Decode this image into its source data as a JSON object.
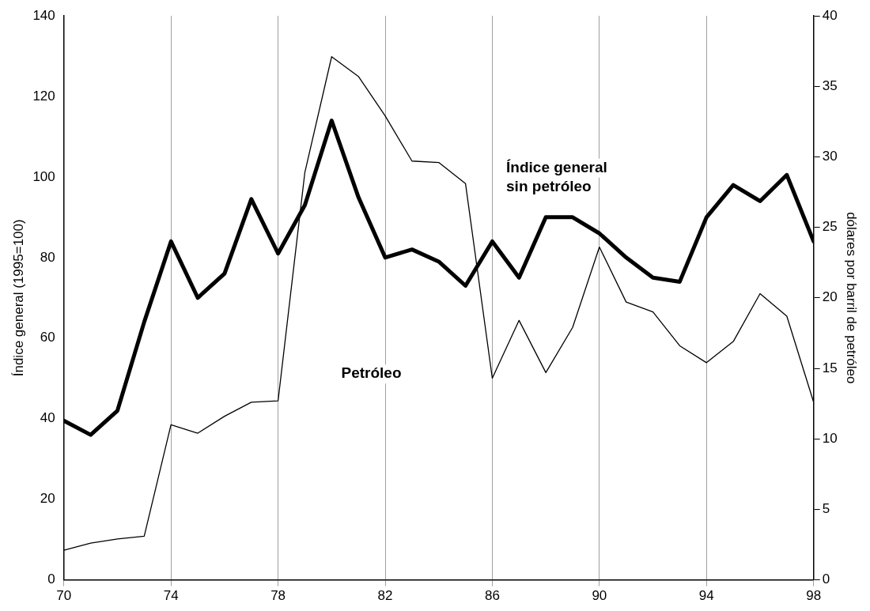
{
  "chart_data": {
    "type": "line",
    "ylabel": "Índice general (1995=100)",
    "y2label": "dólares por barril de petróleo",
    "x": [
      70,
      71,
      72,
      73,
      74,
      75,
      76,
      77,
      78,
      79,
      80,
      81,
      82,
      83,
      84,
      85,
      86,
      87,
      88,
      89,
      90,
      91,
      92,
      93,
      94,
      95,
      96,
      97,
      98
    ],
    "series": [
      {
        "color": "#000000",
        "values": [
          39.5,
          36,
          42,
          64,
          84,
          70,
          76,
          94.5,
          81,
          93,
          114,
          95,
          80,
          82,
          79,
          73,
          84,
          75,
          90,
          90,
          86,
          80,
          75,
          74,
          90,
          98,
          94,
          100.5,
          84
        ]
      },
      {
        "color": "#000000",
        "axis": "y2",
        "values": [
          2.1,
          2.6,
          2.9,
          3.1,
          11,
          10.4,
          11.6,
          12.6,
          12.7,
          28.9,
          37.1,
          35.7,
          32.9,
          29.7,
          29.6,
          28.1,
          14.3,
          18.4,
          14.7,
          17.9,
          23.6,
          19.7,
          19,
          16.6,
          15.4,
          16.9,
          20.3,
          18.7,
          12.6
        ]
      }
    ],
    "xlim": [
      70,
      98
    ],
    "xticks": [
      70,
      74,
      78,
      82,
      86,
      90,
      94,
      98
    ],
    "ylim": [
      0,
      140
    ],
    "yticks": [
      0,
      20,
      40,
      60,
      80,
      100,
      120,
      140
    ],
    "y2lim": [
      0,
      40
    ],
    "y2ticks": [
      0,
      5,
      10,
      15,
      20,
      25,
      30,
      35,
      40
    ],
    "grid": "x",
    "legend": false,
    "marker": "none",
    "line_style": "solid",
    "annotations": [
      "Índice general\nsin petróleo",
      "Petróleo"
    ]
  }
}
